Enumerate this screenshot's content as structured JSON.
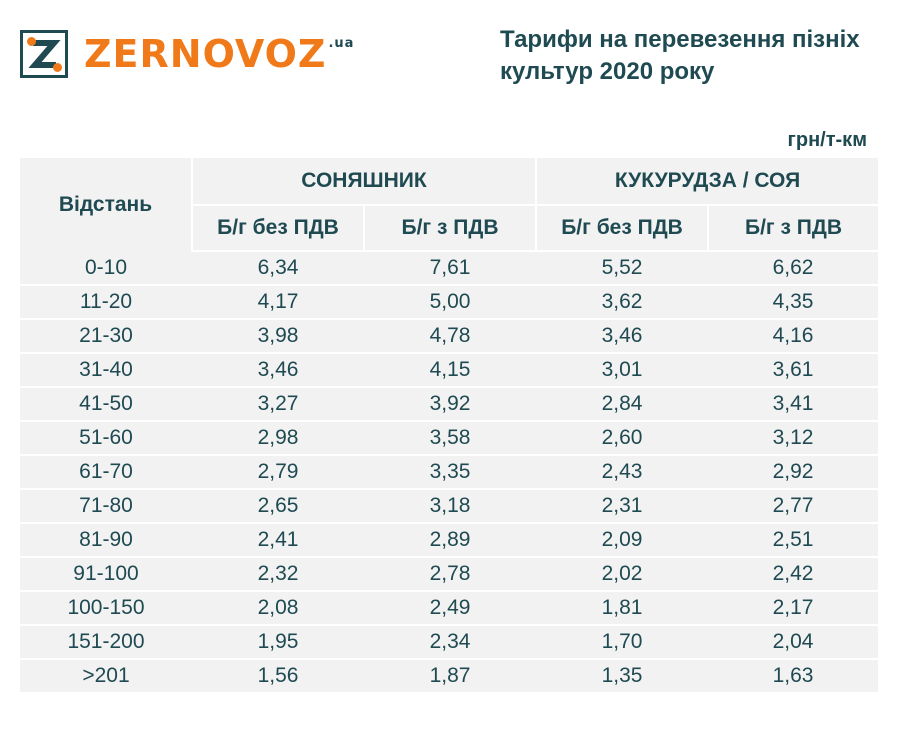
{
  "logo": {
    "text": "ZERNOVOZ",
    "suffix": ".ua"
  },
  "title": "Тарифи на перевезення пізніх культур 2020 року",
  "units": "грн/т-км",
  "table": {
    "distance_header": "Відстань",
    "crops": [
      "СОНЯШНИК",
      "КУКУРУДЗА / СОЯ"
    ],
    "subheaders": [
      "Б/г без ПДВ",
      "Б/г з ПДВ",
      "Б/г без ПДВ",
      "Б/г з ПДВ"
    ],
    "rows": [
      [
        "0-10",
        "6,34",
        "7,61",
        "5,52",
        "6,62"
      ],
      [
        "11-20",
        "4,17",
        "5,00",
        "3,62",
        "4,35"
      ],
      [
        "21-30",
        "3,98",
        "4,78",
        "3,46",
        "4,16"
      ],
      [
        "31-40",
        "3,46",
        "4,15",
        "3,01",
        "3,61"
      ],
      [
        "41-50",
        "3,27",
        "3,92",
        "2,84",
        "3,41"
      ],
      [
        "51-60",
        "2,98",
        "3,58",
        "2,60",
        "3,12"
      ],
      [
        "61-70",
        "2,79",
        "3,35",
        "2,43",
        "2,92"
      ],
      [
        "71-80",
        "2,65",
        "3,18",
        "2,31",
        "2,77"
      ],
      [
        "81-90",
        "2,41",
        "2,89",
        "2,09",
        "2,51"
      ],
      [
        "91-100",
        "2,32",
        "2,78",
        "2,02",
        "2,42"
      ],
      [
        "100-150",
        "2,08",
        "2,49",
        "1,81",
        "2,17"
      ],
      [
        "151-200",
        "1,95",
        "2,34",
        "1,70",
        "2,04"
      ],
      [
        ">201",
        "1,56",
        "1,87",
        "1,35",
        "1,63"
      ]
    ]
  },
  "colors": {
    "accent": "#f07a1a",
    "text": "#1f4a52",
    "table_bg": "#f2f2f2"
  }
}
